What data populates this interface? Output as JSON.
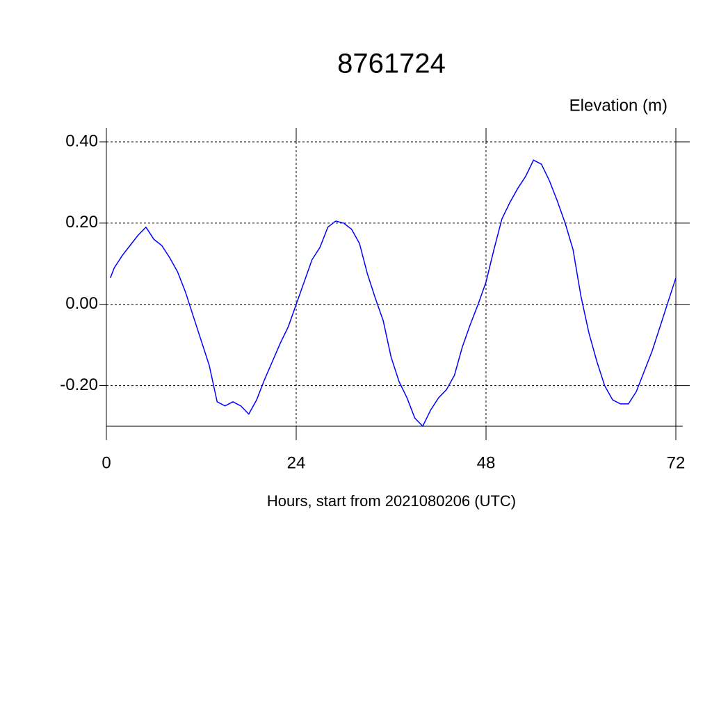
{
  "chart_data": {
    "type": "line",
    "title": "8761724",
    "y_label": "Elevation (m)",
    "x_label": "Hours, start from 2021080206 (UTC)",
    "x": [
      0.5,
      1,
      2,
      3,
      4,
      5,
      6,
      7,
      8,
      9,
      10,
      11,
      12,
      13,
      14,
      15,
      16,
      17,
      18,
      19,
      20,
      21,
      22,
      23,
      24,
      25,
      26,
      27,
      28,
      29,
      30,
      31,
      32,
      33,
      34,
      35,
      36,
      37,
      38,
      39,
      40,
      41,
      42,
      43,
      44,
      45,
      46,
      47,
      48,
      49,
      50,
      51,
      52,
      53,
      54,
      55,
      56,
      57,
      58,
      59,
      60,
      61,
      62,
      63,
      64,
      65,
      66,
      67,
      68,
      69,
      70,
      71,
      72
    ],
    "series": [
      {
        "name": "Elevation",
        "color": "#0000ff",
        "values": [
          0.065,
          0.09,
          0.12,
          0.145,
          0.17,
          0.19,
          0.16,
          0.145,
          0.115,
          0.08,
          0.03,
          -0.03,
          -0.09,
          -0.15,
          -0.24,
          -0.25,
          -0.24,
          -0.25,
          -0.27,
          -0.235,
          -0.185,
          -0.14,
          -0.095,
          -0.055,
          0.0,
          0.055,
          0.11,
          0.14,
          0.19,
          0.205,
          0.2,
          0.185,
          0.15,
          0.075,
          0.015,
          -0.04,
          -0.13,
          -0.19,
          -0.23,
          -0.28,
          -0.3,
          -0.26,
          -0.23,
          -0.21,
          -0.175,
          -0.105,
          -0.05,
          0.0,
          0.055,
          0.135,
          0.21,
          0.25,
          0.285,
          0.315,
          0.355,
          0.345,
          0.305,
          0.255,
          0.2,
          0.135,
          0.02,
          -0.07,
          -0.14,
          -0.2,
          -0.235,
          -0.245,
          -0.245,
          -0.215,
          -0.165,
          -0.115,
          -0.055,
          0.005,
          0.065
        ]
      }
    ],
    "xlim": [
      0,
      72
    ],
    "xticks": [
      0,
      24,
      48,
      72
    ],
    "ylim": [
      -0.3,
      0.4
    ],
    "yticks": [
      {
        "value": -0.2,
        "label": "-0.20"
      },
      {
        "value": 0,
        "label": "0.00"
      },
      {
        "value": 0.2,
        "label": "0.20"
      },
      {
        "value": 0.4,
        "label": "0.40"
      }
    ],
    "grid": true
  }
}
